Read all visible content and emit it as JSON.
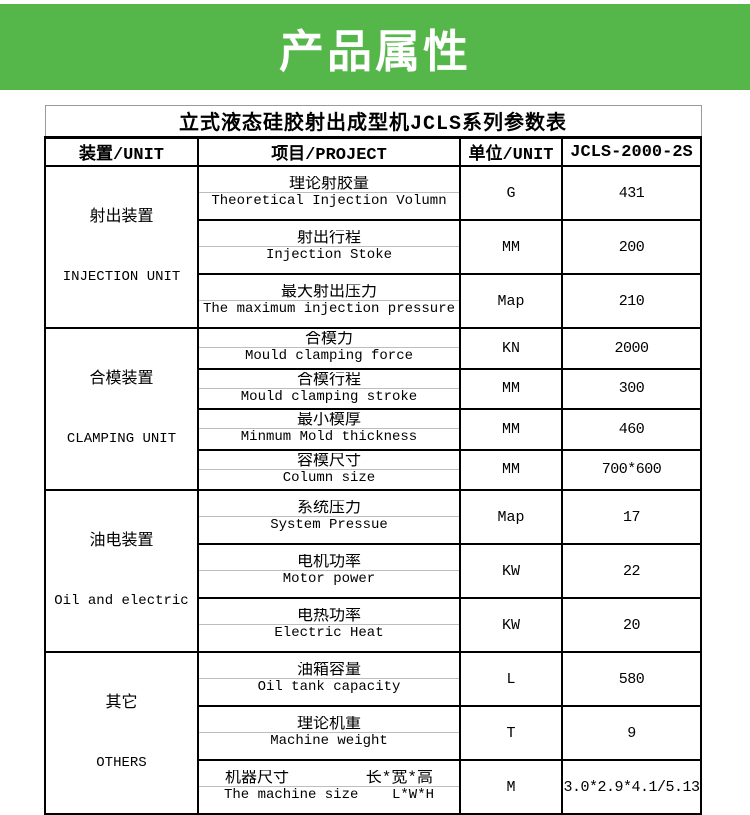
{
  "banner": {
    "title": "产品属性",
    "bg_color": "#55b649",
    "text_color": "#ffffff"
  },
  "table": {
    "title": "立式液态硅胶射出成型机JCLS系列参数表",
    "headers": [
      "装置/UNIT",
      "项目/PROJECT",
      "单位/UNIT",
      "JCLS-2000-2S"
    ],
    "sections": [
      {
        "cn": "射出装置",
        "en": "INJECTION UNIT"
      },
      {
        "cn": "合模装置",
        "en": "CLAMPING UNIT"
      },
      {
        "cn": "油电装置",
        "en": "Oil and electric"
      },
      {
        "cn": "其它",
        "en": "OTHERS"
      }
    ],
    "rows": [
      {
        "cn": "理论射胶量",
        "en": "Theoretical Injection Volumn",
        "unit": "G",
        "value": "431"
      },
      {
        "cn": "射出行程",
        "en": "Injection Stoke",
        "unit": "MM",
        "value": "200"
      },
      {
        "cn": "最大射出压力",
        "en": "The maximum injection pressure",
        "unit": "Map",
        "value": "210"
      },
      {
        "cn": "合模力",
        "en": "Mould clamping force",
        "unit": "KN",
        "value": "2000"
      },
      {
        "cn": "合模行程",
        "en": "Mould clamping stroke",
        "unit": "MM",
        "value": "300"
      },
      {
        "cn": "最小模厚",
        "en": "Minmum Mold thickness",
        "unit": "MM",
        "value": "460"
      },
      {
        "cn": "容模尺寸",
        "en": "Column size",
        "unit": "MM",
        "value": "700*600"
      },
      {
        "cn": "系统压力",
        "en": "System Pressue",
        "unit": "Map",
        "value": "17"
      },
      {
        "cn": "电机功率",
        "en": "Motor power",
        "unit": "KW",
        "value": "22"
      },
      {
        "cn": "电热功率",
        "en": "Electric Heat",
        "unit": "KW",
        "value": "20"
      },
      {
        "cn": "油箱容量",
        "en": "Oil tank capacity",
        "unit": "L",
        "value": "580"
      },
      {
        "cn": "理论机重",
        "en": "Machine weight",
        "unit": "T",
        "value": "9"
      },
      {
        "cn": "机器尺寸        长*宽*高",
        "en": "The machine size    L*W*H",
        "unit": "M",
        "value": "3.0*2.9*4.1/5.13"
      }
    ]
  }
}
